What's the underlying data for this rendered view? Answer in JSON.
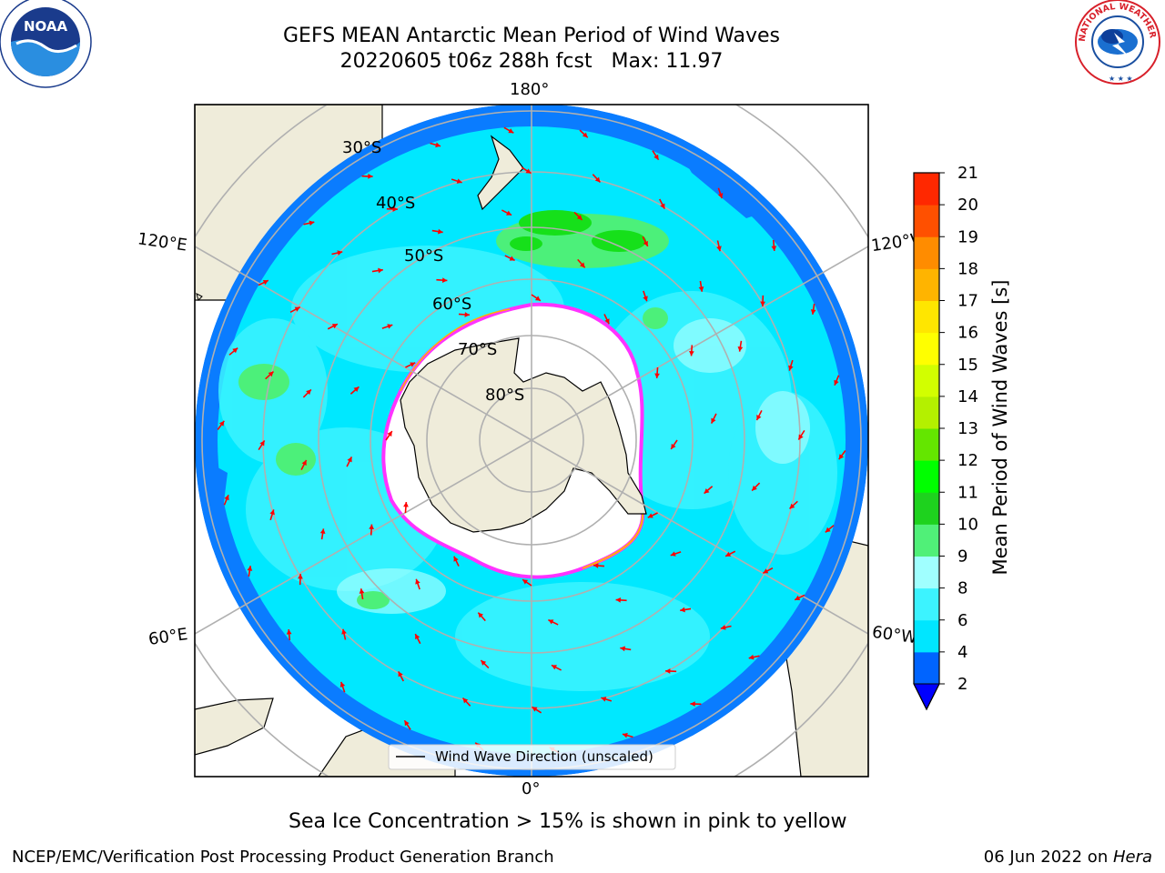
{
  "title": {
    "line1": "GEFS MEAN Antarctic Mean Period of Wind Waves",
    "line2": "20220605 t06z 288h fcst   Max: 11.97"
  },
  "logos": {
    "left": {
      "icon": "noaa-logo-icon",
      "text": "NOAA"
    },
    "right": {
      "icon": "nws-logo-icon",
      "text": "NATIONAL WEATHER SERVICE"
    }
  },
  "map": {
    "projection": "south-polar-stereographic",
    "longitude_labels": {
      "top": "180°",
      "bottom": "0°",
      "upper_left": "120°E",
      "upper_right": "120°W",
      "lower_left": "60°E",
      "lower_right": "60°W"
    },
    "latitude_labels": [
      "30°S",
      "40°S",
      "50°S",
      "60°S",
      "70°S",
      "80°S"
    ],
    "legend": {
      "label": "Wind Wave Direction (unscaled)"
    },
    "colors": {
      "land": "#efecda",
      "ocean_2_4": "#0a7cff",
      "ocean_4_6": "#00e8ff",
      "ocean_6_8": "#3cf3ff",
      "ocean_8_9": "#a0ffff",
      "ocean_9_10": "#4cf07a",
      "ocean_10_11": "#16e01a",
      "sea_ice_edge": "#ff33ff",
      "arrows": "#ff0000"
    }
  },
  "colorbar": {
    "label": "Mean Period of Wind Waves [s]",
    "ticks": [
      "2",
      "4",
      "6",
      "8",
      "9",
      "10",
      "11",
      "12",
      "13",
      "14",
      "15",
      "16",
      "17",
      "18",
      "19",
      "20",
      "21"
    ],
    "colors": [
      "#0064ff",
      "#00e6ff",
      "#3cf3ff",
      "#a0ffff",
      "#50f078",
      "#1ed21e",
      "#00ff00",
      "#64e600",
      "#b4f000",
      "#d2ff00",
      "#ffff00",
      "#ffe600",
      "#ffb400",
      "#ff8c00",
      "#ff5000",
      "#ff2800",
      "#ff0000"
    ],
    "extend_min_color": "#0000ff"
  },
  "caption": "Sea Ice Concentration > 15% is shown in pink to yellow",
  "footer": {
    "left": "NCEP/EMC/Verification Post Processing Product Generation Branch",
    "right_prefix": "06 Jun 2022 on ",
    "right_host": "Hera"
  }
}
